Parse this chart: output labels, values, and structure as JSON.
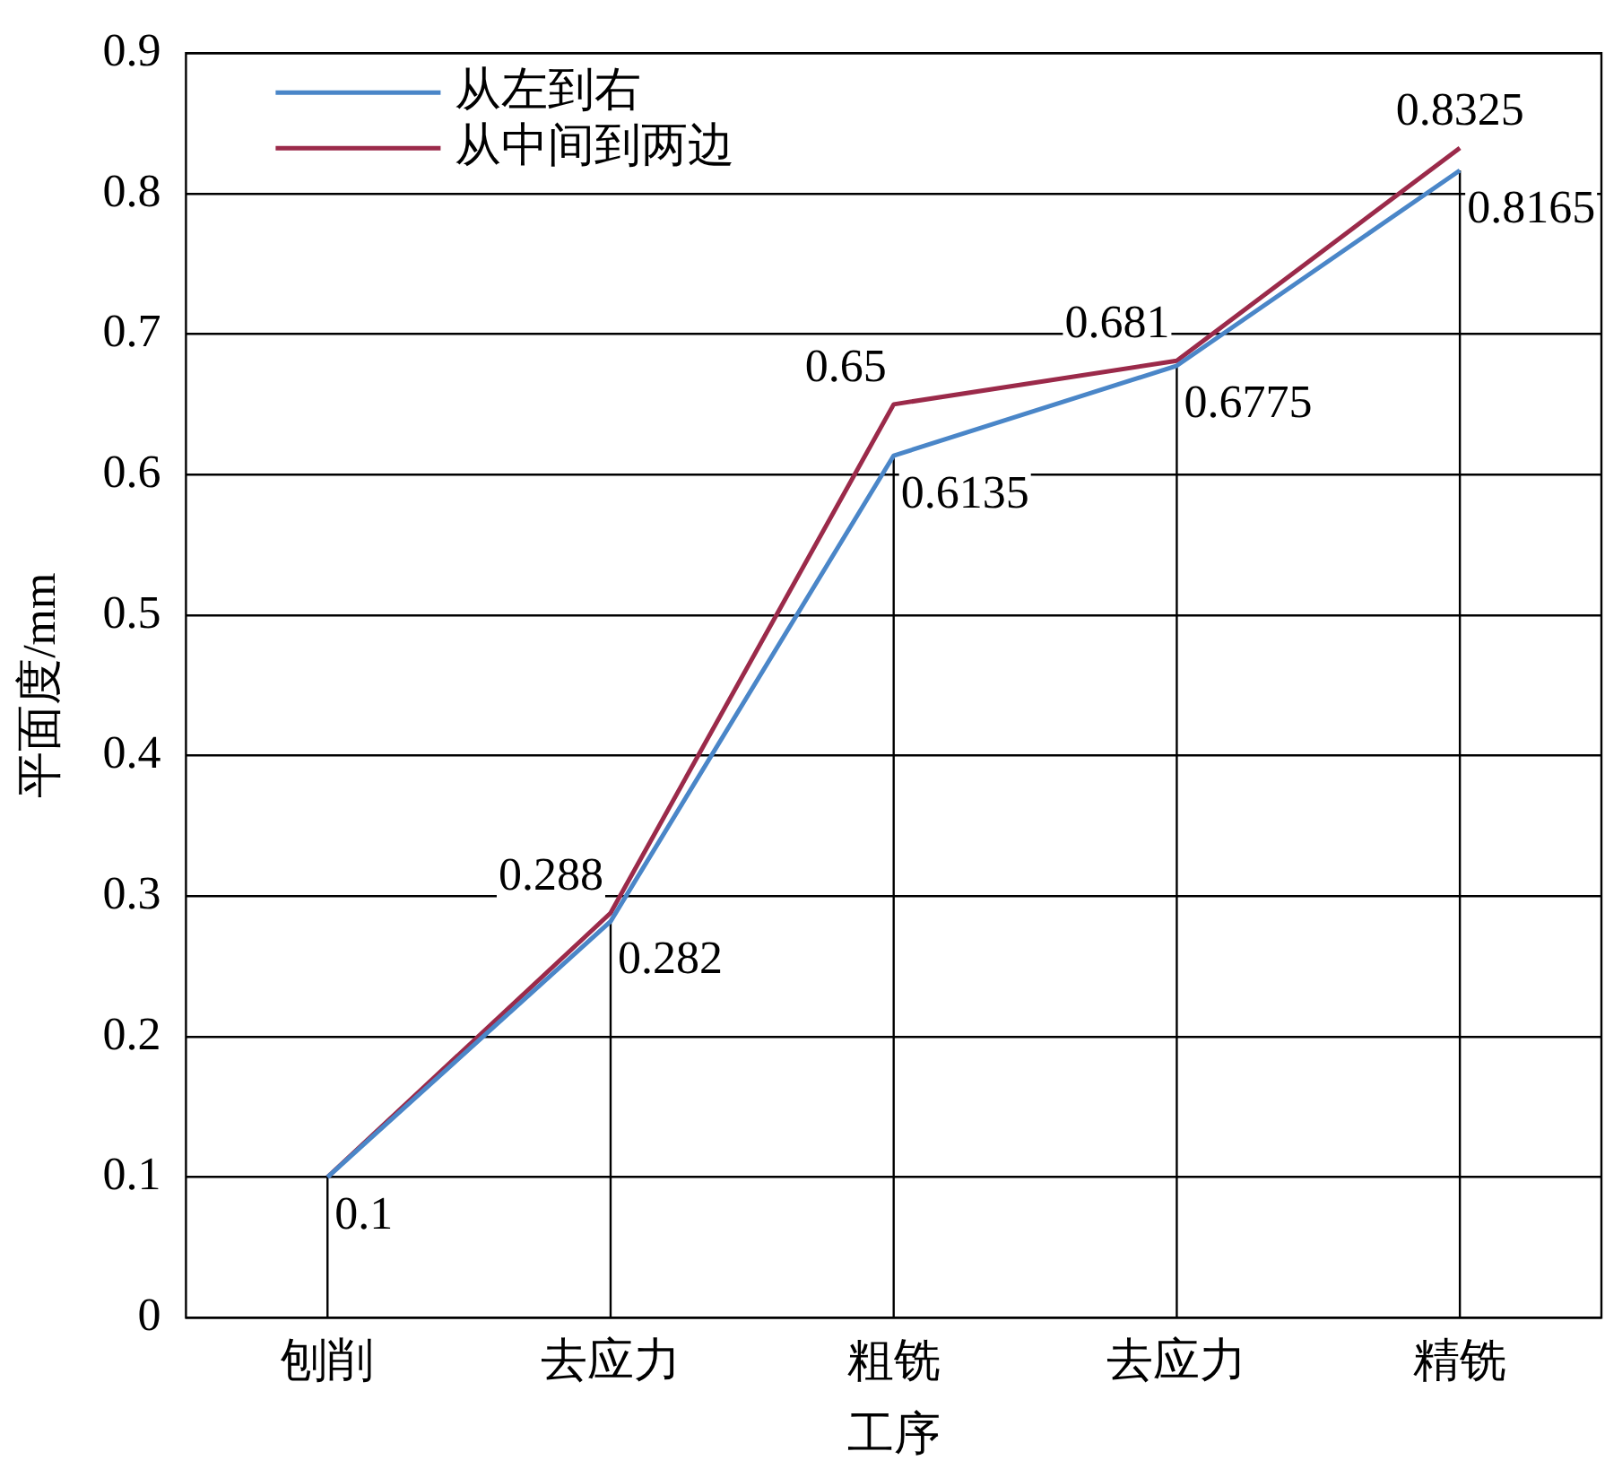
{
  "chart_data": {
    "type": "line",
    "xlabel": "工序",
    "ylabel": "平面度/mm",
    "categories": [
      "刨削",
      "去应力",
      "粗铣",
      "去应力",
      "精铣"
    ],
    "series": [
      {
        "name": "从左到右",
        "color": "#4a86c8",
        "values": [
          0.1,
          0.282,
          0.6135,
          0.6775,
          0.8165
        ],
        "value_labels": [
          "0.1",
          "0.282",
          "0.6135",
          "0.6775",
          "0.8165"
        ]
      },
      {
        "name": "从中间到两边",
        "color": "#9b2a4a",
        "values": [
          0.1,
          0.288,
          0.65,
          0.681,
          0.8325
        ],
        "value_labels": [
          null,
          "0.288",
          "0.65",
          "0.681",
          "0.8325"
        ]
      }
    ],
    "ylim": [
      0,
      0.9
    ],
    "yticks": [
      0,
      0.1,
      0.2,
      0.3,
      0.4,
      0.5,
      0.6,
      0.7,
      0.8,
      0.9
    ],
    "grid": true,
    "legend": "top left",
    "marker": "none",
    "line_style": "solid"
  }
}
